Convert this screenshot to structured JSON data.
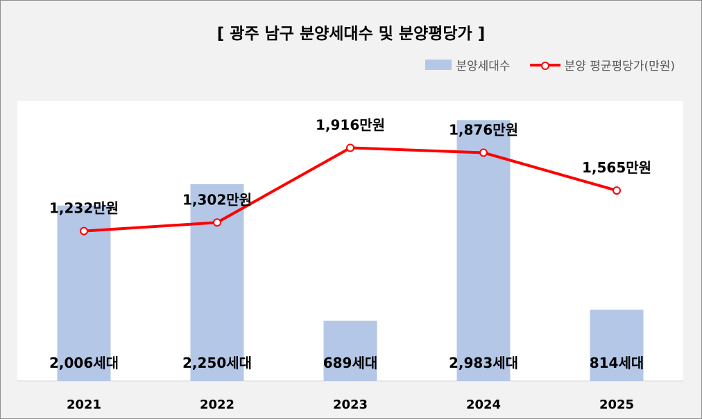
{
  "chart_data": {
    "type": "bar+line",
    "title": "[ 광주 남구 분양세대수 및 분양평당가 ]",
    "categories": [
      "2021",
      "2022",
      "2023",
      "2024",
      "2025"
    ],
    "series": [
      {
        "name": "분양세대수",
        "type": "bar",
        "values": [
          2006,
          2250,
          689,
          2983,
          814
        ],
        "labels": [
          "2,006세대",
          "2,250세대",
          "689세대",
          "2,983세대",
          "814세대"
        ],
        "color": "#b4c7e7"
      },
      {
        "name": "분양 평균평당가(만원)",
        "type": "line",
        "values": [
          1232,
          1302,
          1916,
          1876,
          1565
        ],
        "labels": [
          "1,232만원",
          "1,302만원",
          "1,916만원",
          "1,876만원",
          "1,565만원"
        ],
        "color": "#ff0000"
      }
    ],
    "bar_axis_range": [
      0,
      3200
    ],
    "line_axis_range": [
      0,
      2300
    ],
    "legend_position": "top-right",
    "grid": false
  }
}
